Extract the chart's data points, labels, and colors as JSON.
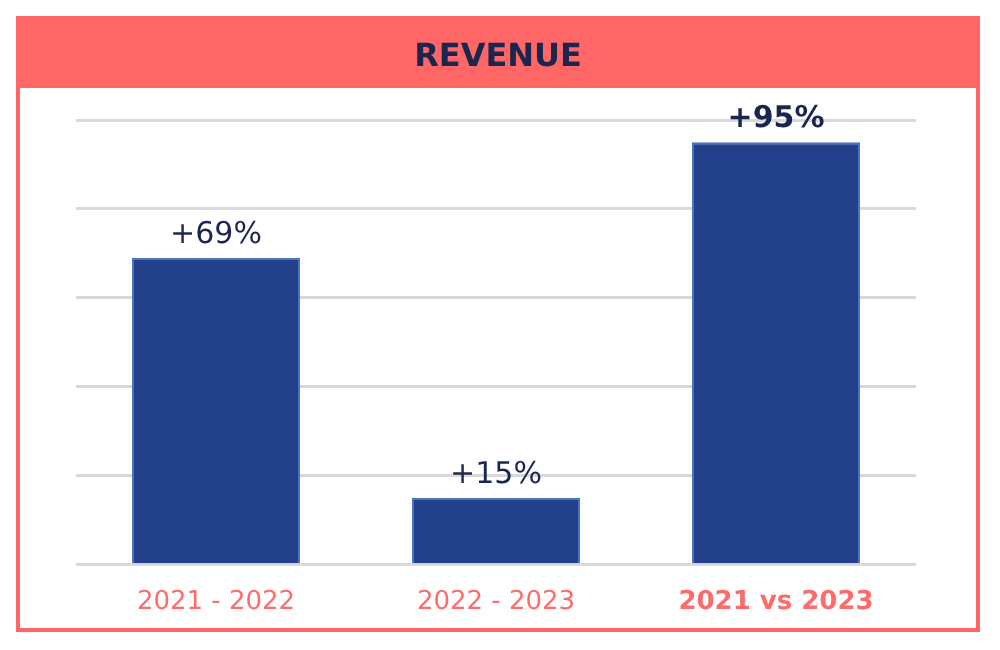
{
  "chart_data": {
    "type": "bar",
    "title": "REVENUE",
    "categories": [
      "2021 - 2022",
      "2022 - 2023",
      "2021 vs 2023"
    ],
    "values": [
      69,
      15,
      95
    ],
    "color": "#22418a",
    "value_labels": [
      "+69%",
      "+15%",
      "+95%"
    ],
    "tick_labels": "x",
    "grid": "y",
    "legend": false
  }
}
